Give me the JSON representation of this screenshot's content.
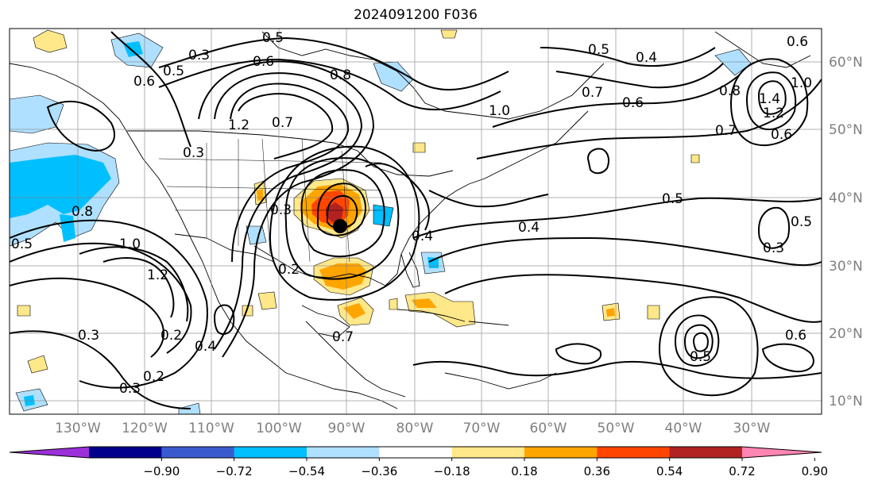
{
  "title": "2024091200 F036",
  "lon_labels": [
    "130°W",
    "120°W",
    "110°W",
    "100°W",
    "90°W",
    "80°W",
    "70°W",
    "60°W",
    "50°W",
    "40°W",
    "30°W"
  ],
  "lat_labels": [
    "60°N",
    "50°N",
    "40°N",
    "30°N",
    "20°N",
    "10°N"
  ],
  "colorbar": {
    "ticks": [
      "−0.90",
      "−0.72",
      "−0.54",
      "−0.36",
      "−0.18",
      "0.18",
      "0.36",
      "0.54",
      "0.72",
      "0.90"
    ],
    "colors": [
      "#9b30d9",
      "#00008b",
      "#3a5bd0",
      "#00bfff",
      "#b0e0ff",
      "#ffffff",
      "#ffe88a",
      "#ffa500",
      "#ff4500",
      "#b22222",
      "#ff85b3"
    ]
  },
  "contour_labels": [
    {
      "t": "0.5"
    },
    {
      "t": "0.3"
    },
    {
      "t": "0.6"
    },
    {
      "t": "0.5"
    },
    {
      "t": "0.6"
    },
    {
      "t": "0.8"
    },
    {
      "t": "0.5"
    },
    {
      "t": "0.4"
    },
    {
      "t": "0.6"
    },
    {
      "t": "0.7"
    },
    {
      "t": "0.6"
    },
    {
      "t": "1.2"
    },
    {
      "t": "0.7"
    },
    {
      "t": "1.0"
    },
    {
      "t": "0.8"
    },
    {
      "t": "1.4"
    },
    {
      "t": "1.2"
    },
    {
      "t": "1.0"
    },
    {
      "t": "0.6"
    },
    {
      "t": "0.3"
    },
    {
      "t": "0.8"
    },
    {
      "t": "0.5"
    },
    {
      "t": "1.0"
    },
    {
      "t": "1.2"
    },
    {
      "t": "0.4"
    },
    {
      "t": "0.5"
    },
    {
      "t": "0.4"
    },
    {
      "t": "0.3"
    },
    {
      "t": "0.5"
    },
    {
      "t": "0.3"
    },
    {
      "t": "0.2"
    },
    {
      "t": "0.4"
    },
    {
      "t": "0.3"
    },
    {
      "t": "0.2"
    },
    {
      "t": "0.7"
    },
    {
      "t": "0.5"
    },
    {
      "t": "0.6"
    },
    {
      "t": "0.2"
    },
    {
      "t": "0.3"
    },
    {
      "t": "0.7"
    }
  ]
}
